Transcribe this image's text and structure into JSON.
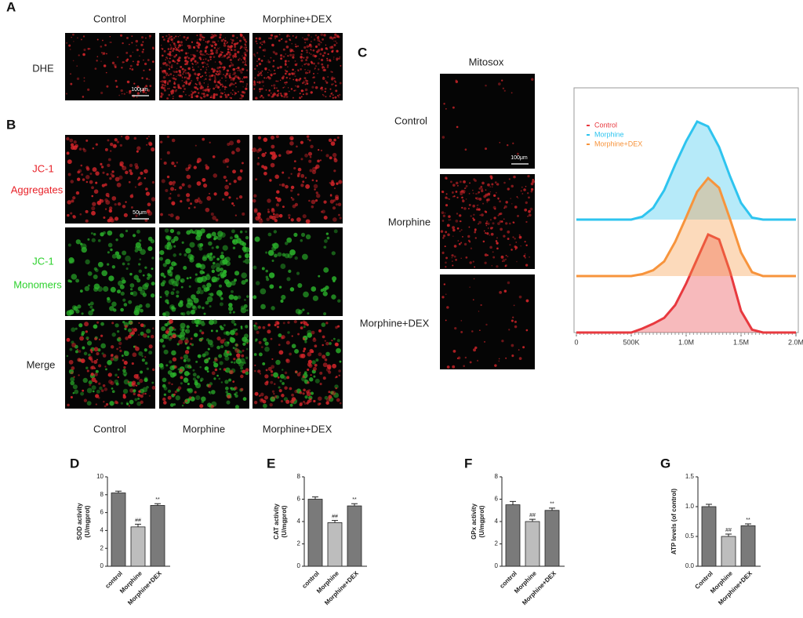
{
  "panel_a": {
    "label": "A",
    "columns": [
      "Control",
      "Morphine",
      "Morphine+DEX"
    ],
    "row": "DHE",
    "scale_bar": "100μm"
  },
  "panel_b": {
    "label": "B",
    "rows": [
      [
        "JC-1",
        "Aggregates"
      ],
      [
        "JC-1",
        "Monomers"
      ],
      [
        "Merge"
      ]
    ],
    "columns": [
      "Control",
      "Morphine",
      "Morphine+DEX"
    ],
    "scale_bar": "50μm"
  },
  "panel_c": {
    "label": "C",
    "title": "Mitosox",
    "rows": [
      "Control",
      "Morphine",
      "Morphine+DEX"
    ],
    "scale_bar": "100μm"
  },
  "chart_data": [
    {
      "type": "area",
      "legend": "upper left",
      "x": [
        0,
        100000,
        200000,
        300000,
        400000,
        500000,
        600000,
        700000,
        800000,
        900000,
        1000000,
        1100000,
        1200000,
        1300000,
        1400000,
        1500000,
        1600000,
        1700000,
        1800000,
        1900000,
        2000000
      ],
      "xlim": [
        0,
        2000000
      ],
      "xticks": [
        0,
        {
          "value": 500000,
          "label": "500K"
        },
        {
          "value": 1000000,
          "label": "1.0M"
        },
        {
          "value": 1500000,
          "label": "1.5M"
        },
        {
          "value": 2000000,
          "label": "2.0M"
        }
      ],
      "series": [
        {
          "name": "Control",
          "color": "#e8393f",
          "values": [
            0,
            0,
            0,
            0,
            0,
            0,
            4,
            9,
            15,
            28,
            50,
            75,
            100,
            95,
            62,
            22,
            3,
            0,
            0,
            0,
            0
          ]
        },
        {
          "name": "Morphine",
          "color": "#2ec4ef",
          "values": [
            0,
            0,
            0,
            0,
            0,
            0,
            3,
            12,
            30,
            56,
            80,
            100,
            95,
            74,
            44,
            17,
            2,
            0,
            0,
            0,
            0
          ]
        },
        {
          "name": "Morphine+DEX",
          "color": "#f7943c",
          "values": [
            0,
            0,
            0,
            0,
            0,
            0,
            2,
            6,
            15,
            35,
            60,
            86,
            100,
            90,
            58,
            24,
            4,
            0,
            0,
            0,
            0
          ]
        }
      ]
    },
    {
      "type": "bar",
      "label": "D",
      "y_label": [
        "SOD activity",
        "(U/mgprot)"
      ],
      "categories": [
        "control",
        "Morphine",
        "Morphine+DEX"
      ],
      "values": [
        8.2,
        4.4,
        6.8
      ],
      "errors": [
        0.2,
        0.3,
        0.2
      ],
      "colors": [
        "#7a7a7a",
        "#bdbdbd",
        "#7a7a7a"
      ],
      "annotations": [
        {
          "category": "Morphine",
          "text": "##"
        },
        {
          "category": "Morphine+DEX",
          "text": "**"
        }
      ],
      "ylim": [
        0,
        10
      ],
      "yticks": [
        0,
        2,
        4,
        6,
        8,
        10
      ]
    },
    {
      "type": "bar",
      "label": "E",
      "y_label": [
        "CAT activity",
        "(U/mgprot)"
      ],
      "categories": [
        "control",
        "Morphine",
        "Morphine+DEX"
      ],
      "values": [
        6.0,
        3.9,
        5.4
      ],
      "errors": [
        0.2,
        0.2,
        0.2
      ],
      "colors": [
        "#7a7a7a",
        "#bdbdbd",
        "#7a7a7a"
      ],
      "annotations": [
        {
          "category": "Morphine",
          "text": "##"
        },
        {
          "category": "Morphine+DEX",
          "text": "**"
        }
      ],
      "ylim": [
        0,
        8
      ],
      "yticks": [
        0,
        2,
        4,
        6,
        8
      ]
    },
    {
      "type": "bar",
      "label": "F",
      "y_label": [
        "GPx activity",
        "(U/mgprot)"
      ],
      "categories": [
        "control",
        "Morphine",
        "Morphine+DEX"
      ],
      "values": [
        5.5,
        4.0,
        5.0
      ],
      "errors": [
        0.3,
        0.2,
        0.2
      ],
      "colors": [
        "#7a7a7a",
        "#bdbdbd",
        "#7a7a7a"
      ],
      "annotations": [
        {
          "category": "Morphine",
          "text": "##"
        },
        {
          "category": "Morphine+DEX",
          "text": "**"
        }
      ],
      "ylim": [
        0,
        8
      ],
      "yticks": [
        0,
        2,
        4,
        6,
        8
      ]
    },
    {
      "type": "bar",
      "label": "G",
      "y_label": [
        "ATP levels (of control)"
      ],
      "categories": [
        "Control",
        "Morphine",
        "Morphine+DEX"
      ],
      "values": [
        1.0,
        0.5,
        0.68
      ],
      "errors": [
        0.04,
        0.04,
        0.03
      ],
      "colors": [
        "#7a7a7a",
        "#bdbdbd",
        "#7a7a7a"
      ],
      "annotations": [
        {
          "category": "Morphine",
          "text": "##"
        },
        {
          "category": "Morphine+DEX",
          "text": "**"
        }
      ],
      "ylim": [
        0,
        1.5
      ],
      "yticks": [
        {
          "value": 0,
          "label": "0.0"
        },
        0.5,
        {
          "value": 1,
          "label": "1.0"
        },
        1.5
      ]
    }
  ]
}
